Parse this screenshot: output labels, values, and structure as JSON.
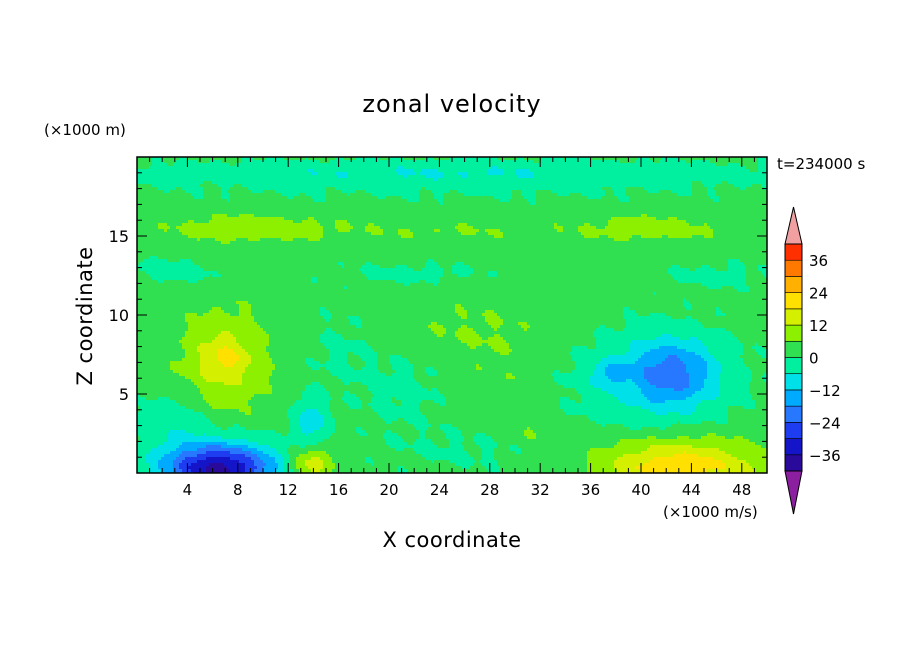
{
  "chart_data": {
    "type": "heatmap",
    "title": "zonal velocity",
    "time_label": "t=234000 s",
    "xlabel": "X coordinate",
    "ylabel": "Z coordinate",
    "x_unit": "(×1000 m/s)",
    "y_unit": "(×1000 m)",
    "xlim": [
      0,
      50
    ],
    "ylim": [
      0,
      20
    ],
    "x_ticks": [
      4,
      8,
      12,
      16,
      20,
      24,
      28,
      32,
      36,
      40,
      44,
      48
    ],
    "y_ticks": [
      5,
      10,
      15
    ],
    "colorbar": {
      "ticks": [
        36,
        24,
        12,
        0,
        -12,
        -24,
        -36
      ],
      "levels": [
        -42,
        -36,
        -30,
        -24,
        -18,
        -12,
        -6,
        0,
        6,
        12,
        18,
        24,
        30,
        36,
        42
      ],
      "colors": [
        "#2a0a9a",
        "#1414c8",
        "#1e3cf0",
        "#2878ff",
        "#00aaff",
        "#00e0e8",
        "#00f0a0",
        "#30e050",
        "#8cf000",
        "#d4f000",
        "#ffe000",
        "#ffb000",
        "#ff7800",
        "#ff3000"
      ],
      "under_color": "#8c1ea0",
      "over_color": "#f0a0a0"
    },
    "field": {
      "background": 2,
      "features": [
        {
          "x": 25,
          "z": 19,
          "sx": 26,
          "sz": 0.8,
          "u": -8
        },
        {
          "x": 25,
          "z": 17.8,
          "sx": 26,
          "sz": 0.7,
          "u": -2
        },
        {
          "x": 9,
          "z": 15.5,
          "sx": 7,
          "sz": 0.9,
          "u": 8
        },
        {
          "x": 41,
          "z": 15.5,
          "sx": 6,
          "sz": 0.9,
          "u": 7
        },
        {
          "x": 25,
          "z": 15.3,
          "sx": 9,
          "sz": 0.7,
          "u": 4
        },
        {
          "x": 3,
          "z": 12.8,
          "sx": 4,
          "sz": 0.8,
          "u": -5
        },
        {
          "x": 22,
          "z": 12.6,
          "sx": 6,
          "sz": 0.7,
          "u": -4
        },
        {
          "x": 46,
          "z": 12.5,
          "sx": 4,
          "sz": 0.8,
          "u": -4
        },
        {
          "x": 7,
          "z": 7.2,
          "sx": 3.6,
          "sz": 3.2,
          "u": 12
        },
        {
          "x": 7,
          "z": 7.2,
          "sx": 1.6,
          "sz": 1.1,
          "u": 6
        },
        {
          "x": 26.5,
          "z": 9,
          "sx": 7,
          "sz": 2.5,
          "u": 4
        },
        {
          "x": 30,
          "z": 5,
          "sx": 4,
          "sz": 3,
          "u": 3
        },
        {
          "x": 21,
          "z": 5.5,
          "sx": 3.5,
          "sz": 2.5,
          "u": -4
        },
        {
          "x": 16,
          "z": 8,
          "sx": 3,
          "sz": 2.5,
          "u": -3
        },
        {
          "x": 13.8,
          "z": 3.2,
          "sx": 1.3,
          "sz": 1.6,
          "u": -12
        },
        {
          "x": 6.5,
          "z": 0.3,
          "sx": 4.5,
          "sz": 1.6,
          "u": -40
        },
        {
          "x": 13.8,
          "z": 0.5,
          "sx": 1.6,
          "sz": 1.2,
          "u": 16
        },
        {
          "x": 27,
          "z": 1.5,
          "sx": 7,
          "sz": 1.5,
          "u": -3
        },
        {
          "x": 31.5,
          "z": 2.5,
          "sx": 1.5,
          "sz": 1.0,
          "u": 4
        },
        {
          "x": 43,
          "z": 0.4,
          "sx": 6.5,
          "sz": 1.7,
          "u": 20
        },
        {
          "x": 42.5,
          "z": 6.3,
          "sx": 3.5,
          "sz": 2.2,
          "u": -18
        },
        {
          "x": 37.5,
          "z": 6.3,
          "sx": 1.4,
          "sz": 0.8,
          "u": -8
        },
        {
          "x": 40,
          "z": 6,
          "sx": 7,
          "sz": 3,
          "u": -7
        },
        {
          "x": 3,
          "z": 3.2,
          "sx": 3,
          "sz": 1.8,
          "u": -6
        }
      ]
    }
  }
}
